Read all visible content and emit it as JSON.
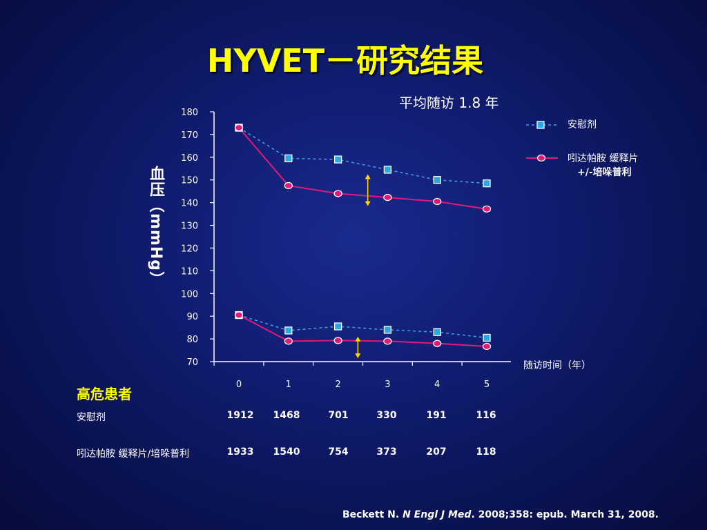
{
  "title": "HYVET－研究结果",
  "citation": {
    "author": "Beckett N.",
    "journal": "N Engl J Med",
    "details": "2008;358:  epub. March 31, 2008."
  },
  "chart_data": {
    "type": "line",
    "title": "平均随访 1.8 年",
    "ylabel": "血压",
    "ylabel_unit": "（mmHg）",
    "xlabel": "随访时间（年）",
    "ylim": [
      70,
      180
    ],
    "yticks": [
      180,
      170,
      160,
      150,
      140,
      130,
      120,
      110,
      100,
      90,
      80,
      70
    ],
    "xticks": [
      0,
      1,
      2,
      3,
      4,
      5
    ],
    "grid": false,
    "legend_position": "right",
    "series": [
      {
        "name": "安慰剂",
        "group": "systolic",
        "marker": "square",
        "style": "dashed",
        "color": "#39a7e6",
        "x": [
          0,
          1,
          2,
          3,
          4,
          5
        ],
        "y": [
          173,
          159.5,
          159,
          154.5,
          150,
          148.5
        ]
      },
      {
        "name": "吲达帕胺 缓释片 +/-培哚普利",
        "group": "systolic",
        "marker": "circle",
        "style": "solid",
        "color": "#e0197a",
        "x": [
          0,
          1,
          2,
          3,
          4,
          5
        ],
        "y": [
          173,
          147.5,
          144,
          142.3,
          140.5,
          137.2
        ]
      },
      {
        "name": "安慰剂",
        "group": "diastolic",
        "marker": "square",
        "style": "dashed",
        "color": "#39a7e6",
        "x": [
          0,
          1,
          2,
          3,
          4,
          5
        ],
        "y": [
          90.5,
          83.7,
          85.5,
          84,
          83,
          80.5
        ]
      },
      {
        "name": "吲达帕胺 缓释片 +/-培哚普利",
        "group": "diastolic",
        "marker": "circle",
        "style": "solid",
        "color": "#e0197a",
        "x": [
          0,
          1,
          2,
          3,
          4,
          5
        ],
        "y": [
          90.5,
          79,
          79.3,
          79,
          78,
          76.7
        ]
      }
    ],
    "annotations": [
      {
        "type": "double-arrow",
        "x": 2.6,
        "y_from": 152.5,
        "y_to": 138.5,
        "color": "#ffd700"
      },
      {
        "type": "double-arrow",
        "x": 2.4,
        "y_from": 81,
        "y_to": 71.5,
        "color": "#ffd700"
      }
    ],
    "legend": [
      {
        "label": "安慰剂",
        "marker": "square",
        "color": "#39a7e6",
        "style": "dashed"
      },
      {
        "label": "吲达帕胺 缓释片",
        "label2": "+/-培哚普利",
        "marker": "circle",
        "color": "#e0197a",
        "style": "solid"
      }
    ]
  },
  "risk_table": {
    "title": "高危患者",
    "rows": [
      {
        "label": "安慰剂",
        "values": [
          "1912",
          "1468",
          "701",
          "330",
          "191",
          "116"
        ]
      },
      {
        "label": "吲达帕胺 缓释片/培哚普利",
        "values": [
          "1933",
          "1540",
          "754",
          "373",
          "207",
          "118"
        ]
      }
    ]
  }
}
